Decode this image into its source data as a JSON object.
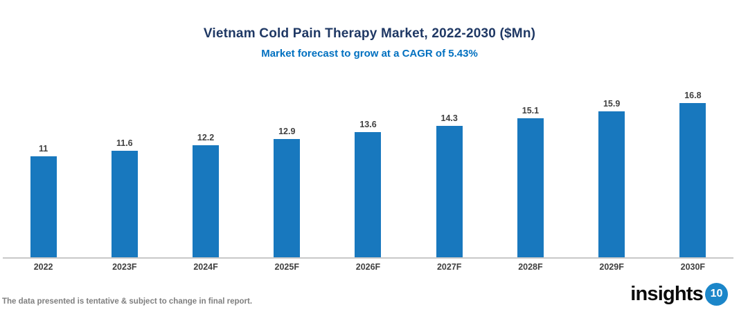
{
  "header": {
    "title": "Vietnam Cold Pain Therapy Market, 2022-2030 ($Mn)",
    "subtitle": "Market forecast to grow at a CAGR of 5.43%"
  },
  "chart_data": {
    "type": "bar",
    "title": "Vietnam Cold Pain Therapy Market, 2022-2030 ($Mn)",
    "subtitle": "Market forecast to grow at a CAGR of 5.43%",
    "categories": [
      "2022",
      "2023F",
      "2024F",
      "2025F",
      "2026F",
      "2027F",
      "2028F",
      "2029F",
      "2030F"
    ],
    "values": [
      11,
      11.6,
      12.2,
      12.9,
      13.6,
      14.3,
      15.1,
      15.9,
      16.8
    ],
    "xlabel": "",
    "ylabel": "",
    "ylim": [
      0,
      18
    ],
    "grid": false,
    "legend_position": "none",
    "data_labels": true,
    "bar_color": "#1878BE"
  },
  "colors": {
    "title": "#1F3864",
    "subtitle": "#0070C0",
    "bar": "#1878BE",
    "data_label": "#404040",
    "axis_line": "#C8C8C8",
    "footer_text": "#7F7F7F",
    "logo_text": "#0B0B0B",
    "logo_badge_bg": "#1B86C9"
  },
  "footer": {
    "disclaimer": "The data presented is tentative & subject to change in final report.",
    "logo_text": "insights",
    "logo_badge": "10"
  }
}
